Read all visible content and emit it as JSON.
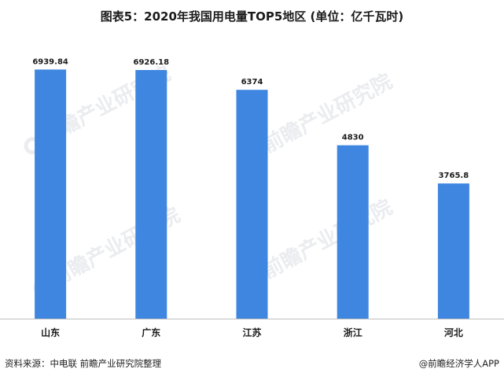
{
  "chart_data": {
    "type": "bar",
    "title": "图表5：2020年我国用电量TOP5地区 (单位：亿千瓦时)",
    "categories": [
      "山东",
      "广东",
      "江苏",
      "浙江",
      "河北"
    ],
    "values": [
      6939.84,
      6926.18,
      6374,
      4830,
      3765.8
    ],
    "value_labels": [
      "6939.84",
      "6926.18",
      "6374",
      "4830",
      "3765.8"
    ],
    "xlabel": "",
    "ylabel": "",
    "ylim": [
      0,
      8000
    ],
    "grid": false,
    "bar_color": "#3f86e0"
  },
  "footer": {
    "source": "资料来源：中电联 前瞻产业研究院整理",
    "brand": "@前瞻经济学人APP"
  },
  "watermark": {
    "text": "前瞻产业研究院"
  }
}
